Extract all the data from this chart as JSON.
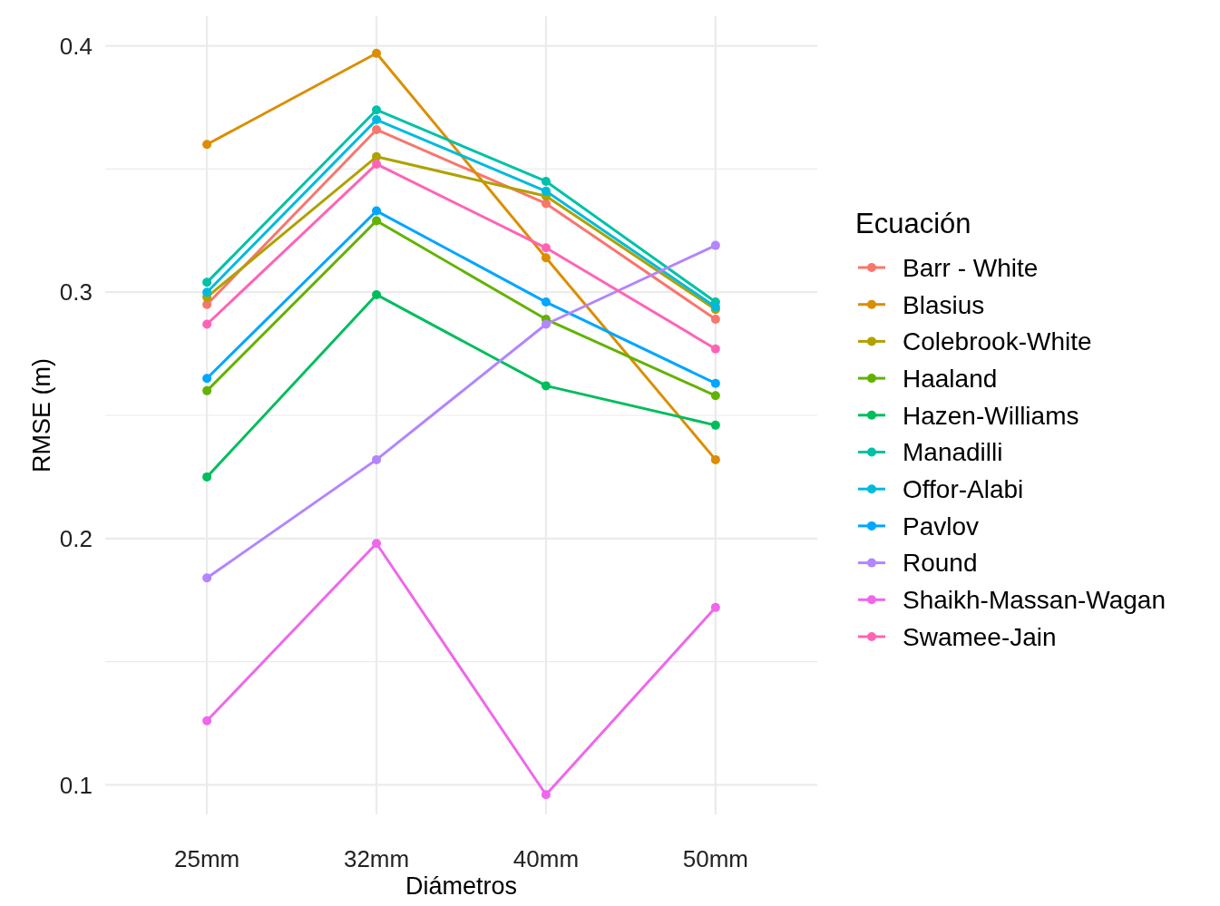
{
  "chart_data": {
    "type": "line",
    "xlabel": "Diámetros",
    "ylabel": "RMSE (m)",
    "legend_title": "Ecuación",
    "legend": "right",
    "grid": true,
    "marker": "circle",
    "line_style": "solid",
    "categories": [
      "25mm",
      "32mm",
      "40mm",
      "50mm"
    ],
    "ylim": [
      0.088,
      0.412
    ],
    "yticks": [
      0.1,
      {
        "value": 0.15,
        "label": null
      },
      0.2,
      {
        "value": 0.25,
        "label": null
      },
      0.3,
      {
        "value": 0.35,
        "label": null
      },
      0.4
    ],
    "series": [
      {
        "name": "Barr - White",
        "color": "#F8766D",
        "values": [
          0.295,
          0.366,
          0.336,
          0.289
        ]
      },
      {
        "name": "Blasius",
        "color": "#DB8E00",
        "values": [
          0.36,
          0.397,
          0.314,
          0.232
        ]
      },
      {
        "name": "Colebrook-White",
        "color": "#AEA200",
        "values": [
          0.298,
          0.355,
          0.339,
          0.293
        ]
      },
      {
        "name": "Haaland",
        "color": "#64B200",
        "values": [
          0.26,
          0.329,
          0.289,
          0.258
        ]
      },
      {
        "name": "Hazen-Williams",
        "color": "#00BD5C",
        "values": [
          0.225,
          0.299,
          0.262,
          0.246
        ]
      },
      {
        "name": "Manadilli",
        "color": "#00C1A7",
        "values": [
          0.304,
          0.374,
          0.345,
          0.296
        ]
      },
      {
        "name": "Offor-Alabi",
        "color": "#00BADE",
        "values": [
          0.3,
          0.37,
          0.341,
          0.294
        ]
      },
      {
        "name": "Pavlov",
        "color": "#00A6FF",
        "values": [
          0.265,
          0.333,
          0.296,
          0.263
        ]
      },
      {
        "name": "Round",
        "color": "#B385FF",
        "values": [
          0.184,
          0.232,
          0.287,
          0.319
        ]
      },
      {
        "name": "Shaikh-Massan-Wagan",
        "color": "#EF67EB",
        "values": [
          0.126,
          0.198,
          0.096,
          0.172
        ]
      },
      {
        "name": "Swamee-Jain",
        "color": "#FF63B6",
        "values": [
          0.287,
          0.352,
          0.318,
          0.277
        ]
      }
    ]
  }
}
